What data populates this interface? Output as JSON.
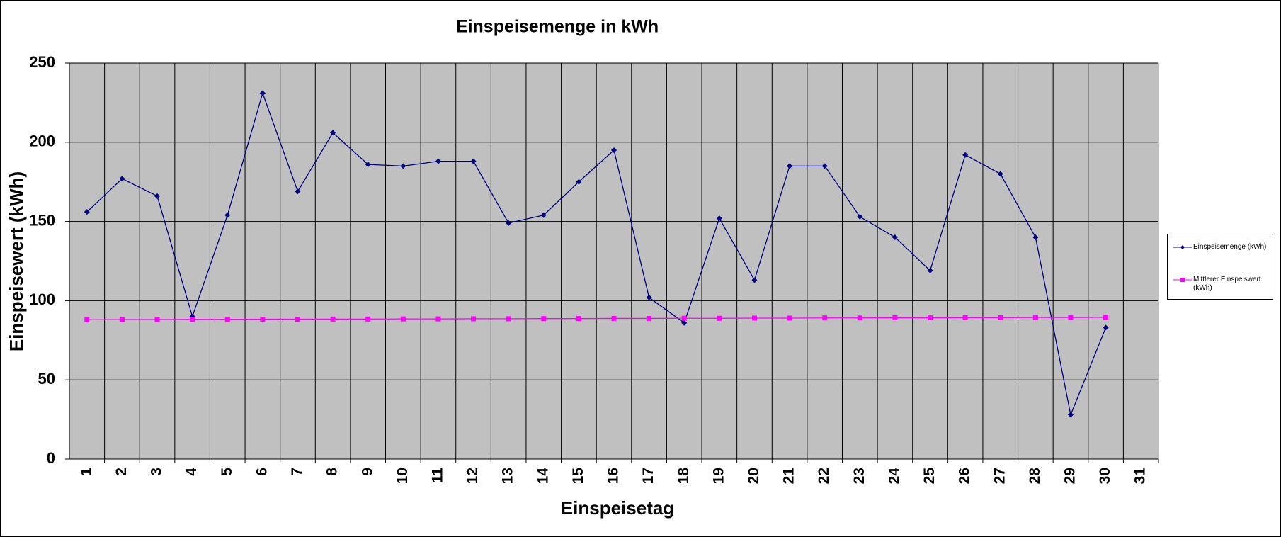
{
  "chart_data": {
    "type": "line",
    "title": "Einspeisemenge in kWh",
    "x_label": "Einspeisetag",
    "y_label": "Einspeisewert (kWh)",
    "categories": [
      "1",
      "2",
      "3",
      "4",
      "5",
      "6",
      "7",
      "8",
      "9",
      "10",
      "11",
      "12",
      "13",
      "14",
      "15",
      "16",
      "17",
      "18",
      "19",
      "20",
      "21",
      "22",
      "23",
      "24",
      "25",
      "26",
      "27",
      "28",
      "29",
      "30",
      "31"
    ],
    "series": [
      {
        "name": "Einspeisemenge (kWh)",
        "color": "#000080",
        "marker": "diamond",
        "values": [
          156,
          177,
          166,
          90,
          154,
          231,
          169,
          206,
          186,
          185,
          188,
          188,
          149,
          154,
          175,
          195,
          102,
          86,
          152,
          113,
          185,
          185,
          153,
          140,
          119,
          192,
          180,
          140,
          28,
          83,
          null
        ]
      },
      {
        "name": "Mittlerer Einspeiswert (kWh)",
        "color": "#ff00ff",
        "marker": "square",
        "values": [
          88.0,
          88.1,
          88.1,
          88.2,
          88.2,
          88.3,
          88.3,
          88.4,
          88.4,
          88.5,
          88.5,
          88.6,
          88.6,
          88.7,
          88.7,
          88.8,
          88.8,
          88.9,
          88.9,
          89.0,
          89.0,
          89.1,
          89.1,
          89.2,
          89.2,
          89.3,
          89.3,
          89.4,
          89.4,
          89.5,
          null
        ]
      }
    ],
    "ylim": [
      0,
      250
    ],
    "yticks": [
      0,
      50,
      100,
      150,
      200,
      250
    ],
    "grid": true,
    "plot_background": "#c0c0c0",
    "legend": "right"
  }
}
